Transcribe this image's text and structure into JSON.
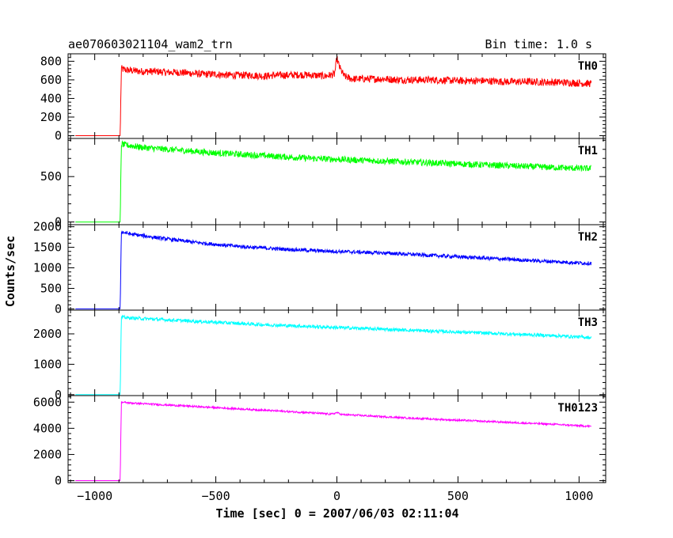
{
  "chart_data": {
    "type": "line",
    "title": "ae070603021104_wam2_trn",
    "subtitle": "Bin time: 1.0 s",
    "xlabel": "Time [sec] 0 = 2007/06/03 02:11:04",
    "ylabel": "Counts/sec",
    "xlim": [
      -1110,
      1110
    ],
    "x_ticks": [
      -1000,
      -500,
      0,
      500,
      1000
    ],
    "x_tick_labels": [
      "−1000",
      "−500",
      "0",
      "500",
      "1000"
    ],
    "grid": false,
    "panels": [
      {
        "name": "TH0",
        "color": "#ff0000",
        "ylim": [
          -30,
          880
        ],
        "y_ticks": [
          0,
          200,
          400,
          600,
          800
        ],
        "y_tick_labels": [
          "0",
          "200",
          "400",
          "600",
          "800"
        ],
        "x": [
          -1080,
          -1000,
          -950,
          -900,
          -895,
          -890,
          -880,
          -850,
          -800,
          -750,
          -700,
          -650,
          -600,
          -550,
          -500,
          -450,
          -400,
          -350,
          -300,
          -250,
          -200,
          -150,
          -100,
          -50,
          -10,
          0,
          10,
          30,
          60,
          100,
          150,
          200,
          250,
          300,
          350,
          400,
          450,
          500,
          550,
          600,
          650,
          700,
          750,
          800,
          850,
          900,
          950,
          1000,
          1050
        ],
        "y": [
          0,
          0,
          0,
          0,
          0,
          720,
          710,
          700,
          690,
          690,
          680,
          680,
          670,
          660,
          660,
          650,
          650,
          650,
          640,
          650,
          650,
          655,
          650,
          640,
          660,
          830,
          740,
          640,
          610,
          610,
          610,
          610,
          600,
          600,
          600,
          600,
          595,
          590,
          590,
          590,
          585,
          580,
          580,
          580,
          575,
          575,
          570,
          565,
          560
        ],
        "noise": 40
      },
      {
        "name": "TH1",
        "color": "#00ff00",
        "ylim": [
          -30,
          920
        ],
        "y_ticks": [
          0,
          500
        ],
        "y_tick_labels": [
          "0",
          "500"
        ],
        "x": [
          -1080,
          -1000,
          -950,
          -900,
          -895,
          -890,
          -880,
          -850,
          -800,
          -700,
          -600,
          -500,
          -400,
          -300,
          -200,
          -100,
          0,
          100,
          200,
          300,
          400,
          500,
          600,
          700,
          800,
          900,
          1000,
          1050
        ],
        "y": [
          0,
          0,
          0,
          0,
          0,
          860,
          850,
          840,
          820,
          800,
          780,
          760,
          745,
          730,
          715,
          700,
          690,
          680,
          670,
          660,
          650,
          640,
          630,
          620,
          610,
          600,
          590,
          590
        ],
        "noise": 35
      },
      {
        "name": "TH2",
        "color": "#0000ff",
        "ylim": [
          -30,
          2050
        ],
        "y_ticks": [
          0,
          500,
          1000,
          1500,
          2000
        ],
        "y_tick_labels": [
          "0",
          "500",
          "1000",
          "1500",
          "2000"
        ],
        "x": [
          -1080,
          -1000,
          -950,
          -900,
          -895,
          -890,
          -880,
          -850,
          -800,
          -700,
          -600,
          -500,
          -400,
          -300,
          -200,
          -100,
          0,
          100,
          200,
          300,
          400,
          500,
          600,
          700,
          800,
          900,
          1000,
          1050
        ],
        "y": [
          0,
          0,
          0,
          0,
          0,
          1880,
          1860,
          1820,
          1780,
          1700,
          1630,
          1570,
          1520,
          1480,
          1450,
          1420,
          1400,
          1380,
          1360,
          1330,
          1300,
          1270,
          1240,
          1210,
          1180,
          1150,
          1120,
          1110
        ],
        "noise": 45
      },
      {
        "name": "TH3",
        "color": "#00ffff",
        "ylim": [
          -30,
          2780
        ],
        "y_ticks": [
          0,
          1000,
          2000
        ],
        "y_tick_labels": [
          "0",
          "1000",
          "2000"
        ],
        "x": [
          -1080,
          -1000,
          -950,
          -900,
          -895,
          -890,
          -880,
          -850,
          -800,
          -700,
          -600,
          -500,
          -400,
          -300,
          -200,
          -100,
          0,
          100,
          200,
          300,
          400,
          500,
          600,
          700,
          800,
          900,
          1000,
          1050
        ],
        "y": [
          0,
          0,
          0,
          0,
          0,
          2550,
          2540,
          2520,
          2500,
          2460,
          2420,
          2380,
          2340,
          2300,
          2270,
          2240,
          2210,
          2180,
          2150,
          2120,
          2090,
          2060,
          2030,
          2000,
          1970,
          1940,
          1900,
          1880
        ],
        "noise": 55
      },
      {
        "name": "TH0123",
        "color": "#ff00ff",
        "ylim": [
          -150,
          6500
        ],
        "y_ticks": [
          0,
          2000,
          4000,
          6000
        ],
        "y_tick_labels": [
          "0",
          "2000",
          "4000",
          "6000"
        ],
        "x": [
          -1080,
          -1000,
          -950,
          -900,
          -895,
          -890,
          -880,
          -850,
          -800,
          -700,
          -600,
          -500,
          -400,
          -300,
          -200,
          -100,
          -20,
          0,
          20,
          100,
          200,
          300,
          400,
          500,
          600,
          700,
          800,
          900,
          1000,
          1050
        ],
        "y": [
          0,
          0,
          0,
          0,
          0,
          6000,
          5980,
          5930,
          5880,
          5780,
          5680,
          5580,
          5480,
          5380,
          5280,
          5180,
          5080,
          5200,
          5050,
          4980,
          4880,
          4780,
          4700,
          4620,
          4540,
          4460,
          4380,
          4300,
          4200,
          4150
        ],
        "noise": 70
      }
    ]
  }
}
